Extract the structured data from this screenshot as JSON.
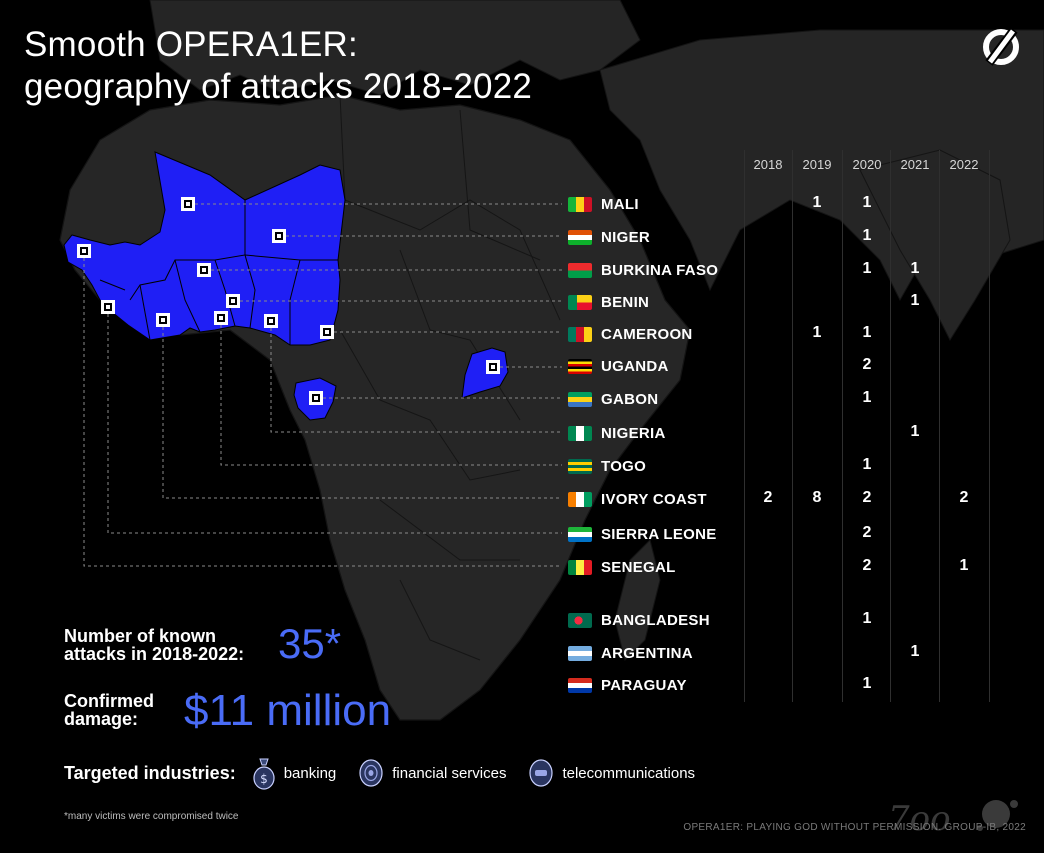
{
  "title": {
    "line1": "Smooth OPERA1ER:",
    "line2": "geography of attacks 2018-2022"
  },
  "years": [
    "2018",
    "2019",
    "2020",
    "2021",
    "2022"
  ],
  "countries": [
    {
      "name": "MALI",
      "flag": [
        "#14b53a",
        "#fcd116",
        "#ce1126"
      ],
      "flag_dir": "v",
      "counts": [
        "",
        "1",
        "1",
        "",
        ""
      ]
    },
    {
      "name": "NIGER",
      "flag": [
        "#e05206",
        "#ffffff",
        "#0db02b"
      ],
      "flag_dir": "h",
      "counts": [
        "",
        "",
        "1",
        "",
        ""
      ]
    },
    {
      "name": "BURKINA FASO",
      "flag": [
        "#ef2b2d",
        "#009e49"
      ],
      "flag_dir": "h",
      "counts": [
        "",
        "",
        "1",
        "1",
        ""
      ]
    },
    {
      "name": "BENIN",
      "flag": [
        "#008751",
        "#fcd116",
        "#e8112d"
      ],
      "flag_dir": "benin",
      "counts": [
        "",
        "",
        "",
        "1",
        ""
      ]
    },
    {
      "name": "CAMEROON",
      "flag": [
        "#007a5e",
        "#ce1126",
        "#fcd116"
      ],
      "flag_dir": "v",
      "counts": [
        "",
        "1",
        "1",
        "",
        ""
      ]
    },
    {
      "name": "UGANDA",
      "flag": [
        "#000000",
        "#fcdc04",
        "#d90000",
        "#000000",
        "#fcdc04",
        "#d90000"
      ],
      "flag_dir": "h",
      "counts": [
        "",
        "",
        "2",
        "",
        ""
      ]
    },
    {
      "name": "GABON",
      "flag": [
        "#009e60",
        "#fcd116",
        "#3a75c4"
      ],
      "flag_dir": "h",
      "counts": [
        "",
        "",
        "1",
        "",
        ""
      ]
    },
    {
      "name": "NIGERIA",
      "flag": [
        "#008751",
        "#ffffff",
        "#008751"
      ],
      "flag_dir": "v",
      "counts": [
        "",
        "",
        "",
        "1",
        ""
      ]
    },
    {
      "name": "TOGO",
      "flag": [
        "#006a4e",
        "#ffce00",
        "#006a4e",
        "#ffce00",
        "#006a4e"
      ],
      "flag_dir": "h",
      "counts": [
        "",
        "",
        "1",
        "",
        ""
      ]
    },
    {
      "name": "IVORY COAST",
      "flag": [
        "#f77f00",
        "#ffffff",
        "#009e60"
      ],
      "flag_dir": "v",
      "counts": [
        "2",
        "8",
        "2",
        "",
        "2"
      ]
    },
    {
      "name": "SIERRA LEONE",
      "flag": [
        "#1eb53a",
        "#ffffff",
        "#0072c6"
      ],
      "flag_dir": "h",
      "counts": [
        "",
        "",
        "2",
        "",
        ""
      ]
    },
    {
      "name": "SENEGAL",
      "flag": [
        "#00853f",
        "#fdef42",
        "#e31b23"
      ],
      "flag_dir": "v",
      "counts": [
        "",
        "",
        "2",
        "",
        "1"
      ]
    },
    {
      "name": "BANGLADESH",
      "flag": [
        "#006a4e",
        "#f42a41"
      ],
      "flag_dir": "bd",
      "counts": [
        "",
        "",
        "1",
        "",
        ""
      ]
    },
    {
      "name": "ARGENTINA",
      "flag": [
        "#74acdf",
        "#ffffff",
        "#74acdf"
      ],
      "flag_dir": "h",
      "counts": [
        "",
        "",
        "",
        "1",
        ""
      ]
    },
    {
      "name": "PARAGUAY",
      "flag": [
        "#d52b1e",
        "#ffffff",
        "#0038a8"
      ],
      "flag_dir": "h",
      "counts": [
        "",
        "",
        "1",
        "",
        ""
      ]
    }
  ],
  "stats": {
    "attacks_label_1": "Number of known",
    "attacks_label_2": "attacks in 2018-2022:",
    "attacks_value": "35*",
    "damage_label_1": "Confirmed",
    "damage_label_2": "damage:",
    "damage_value": "$11 million"
  },
  "industries": {
    "heading": "Targeted industries:",
    "items": [
      {
        "label": "banking",
        "icon": "money-bag-icon"
      },
      {
        "label": "financial services",
        "icon": "coin-icon"
      },
      {
        "label": "telecommunications",
        "icon": "telecom-icon"
      }
    ]
  },
  "footnote": "*many victims were compromised twice",
  "credit": "OPERA1ER: PLAYING GOD WITHOUT PERMISSION. GROUP-IB, 2022",
  "colors": {
    "accent": "#4a6cf7",
    "highlight": "#1f1ff5",
    "land": "#262626",
    "background": "#000000"
  }
}
